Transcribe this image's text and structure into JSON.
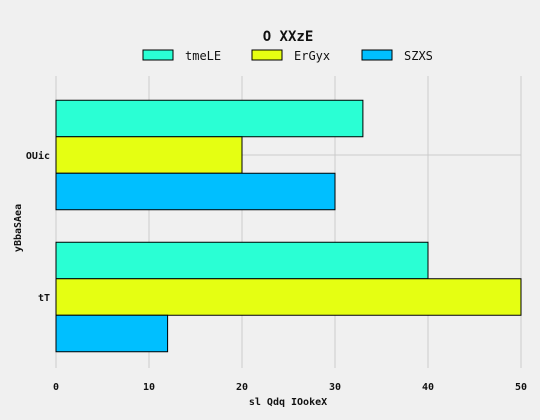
{
  "chart_data": {
    "type": "bar",
    "orientation": "horizontal",
    "title": "O  XXzE",
    "xlabel": "sl Qdq IOokeX",
    "ylabel": "yBbaSAea",
    "categories": [
      "OUic",
      "tT"
    ],
    "series": [
      {
        "name": "tmeLE",
        "color": "#2affd4",
        "values": [
          33,
          40
        ]
      },
      {
        "name": "ErGyx",
        "color": "#e5ff12",
        "values": [
          20,
          50
        ]
      },
      {
        "name": "SZXS",
        "color": "#00bfff",
        "values": [
          30,
          12
        ]
      }
    ],
    "xlim": [
      0,
      50
    ],
    "xticks": [
      0,
      10,
      20,
      30,
      40,
      50
    ],
    "grid": true,
    "legend_position": "top"
  }
}
